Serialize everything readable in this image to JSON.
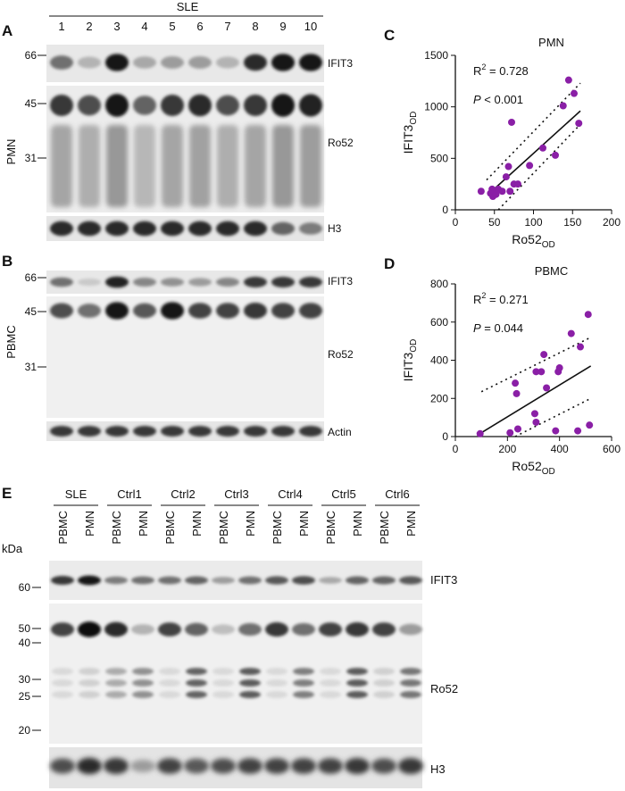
{
  "panels": {
    "A": "A",
    "B": "B",
    "C": "C",
    "D": "D",
    "E": "E"
  },
  "blot_top": {
    "group_label": "SLE",
    "lanes": [
      "1",
      "2",
      "3",
      "4",
      "5",
      "6",
      "7",
      "8",
      "9",
      "10"
    ],
    "A": {
      "side_label": "PMN",
      "markers": [
        "66",
        "45",
        "31"
      ],
      "rows": [
        "IFIT3",
        "Ro52",
        "H3"
      ],
      "ifit3_intensity": [
        0.55,
        0.25,
        0.95,
        0.3,
        0.35,
        0.35,
        0.25,
        0.85,
        0.95,
        0.95
      ],
      "ro52_intensity": [
        0.8,
        0.7,
        0.95,
        0.6,
        0.8,
        0.85,
        0.7,
        0.8,
        0.95,
        0.9
      ],
      "h3_intensity": [
        0.85,
        0.85,
        0.85,
        0.85,
        0.85,
        0.85,
        0.85,
        0.85,
        0.6,
        0.5
      ]
    },
    "B": {
      "side_label": "PBMC",
      "markers": [
        "66",
        "45",
        "31"
      ],
      "rows": [
        "IFIT3",
        "Ro52",
        "Actin"
      ],
      "ifit3_intensity": [
        0.55,
        0.15,
        0.9,
        0.45,
        0.4,
        0.35,
        0.45,
        0.8,
        0.8,
        0.8
      ],
      "ro52_intensity": [
        0.7,
        0.55,
        0.95,
        0.65,
        0.95,
        0.75,
        0.75,
        0.8,
        0.75,
        0.75
      ],
      "actin_intensity": [
        0.8,
        0.8,
        0.8,
        0.8,
        0.8,
        0.8,
        0.8,
        0.8,
        0.8,
        0.8
      ]
    }
  },
  "chart_data": [
    {
      "type": "scatter",
      "panel": "C",
      "title": "PMN",
      "xlabel_main": "Ro52",
      "xlabel_sub": "OD",
      "ylabel_main": "IFIT3",
      "ylabel_sub": "OD",
      "xlim": [
        0,
        200
      ],
      "ylim": [
        0,
        1500
      ],
      "xticks": [
        "0",
        "50",
        "100",
        "150",
        "200"
      ],
      "yticks": [
        "0",
        "500",
        "1000",
        "1500"
      ],
      "r2_prefix": "R",
      "r2_sup": "2",
      "r2_value": " = 0.728",
      "p_symbol": "P",
      "p_value": " < 0.001",
      "points": [
        [
          33,
          180
        ],
        [
          45,
          160
        ],
        [
          47,
          200
        ],
        [
          48,
          130
        ],
        [
          50,
          170
        ],
        [
          52,
          150
        ],
        [
          55,
          200
        ],
        [
          60,
          180
        ],
        [
          65,
          320
        ],
        [
          68,
          420
        ],
        [
          72,
          850
        ],
        [
          70,
          180
        ],
        [
          75,
          250
        ],
        [
          80,
          250
        ],
        [
          95,
          430
        ],
        [
          112,
          600
        ],
        [
          128,
          530
        ],
        [
          138,
          1010
        ],
        [
          145,
          1260
        ],
        [
          152,
          1130
        ],
        [
          158,
          840
        ]
      ],
      "fit": {
        "x": [
          45,
          160
        ],
        "y": [
          170,
          960
        ]
      },
      "ci_upper": {
        "x": [
          40,
          160
        ],
        "y": [
          290,
          1230
        ]
      },
      "ci_lower": {
        "x": [
          55,
          160
        ],
        "y": [
          0,
          830
        ]
      }
    },
    {
      "type": "scatter",
      "panel": "D",
      "title": "PBMC",
      "xlabel_main": "Ro52",
      "xlabel_sub": "OD",
      "ylabel_main": "IFIT3",
      "ylabel_sub": "OD",
      "xlim": [
        0,
        600
      ],
      "ylim": [
        0,
        800
      ],
      "xticks": [
        "0",
        "200",
        "400",
        "600"
      ],
      "yticks": [
        "0",
        "200",
        "400",
        "600",
        "800"
      ],
      "r2_prefix": "R",
      "r2_sup": "2",
      "r2_value": " = 0.271",
      "p_symbol": "P",
      "p_value": " = 0.044",
      "points": [
        [
          95,
          15
        ],
        [
          210,
          20
        ],
        [
          230,
          280
        ],
        [
          235,
          225
        ],
        [
          240,
          40
        ],
        [
          310,
          340
        ],
        [
          305,
          120
        ],
        [
          310,
          75
        ],
        [
          330,
          340
        ],
        [
          340,
          430
        ],
        [
          350,
          255
        ],
        [
          385,
          30
        ],
        [
          395,
          340
        ],
        [
          400,
          360
        ],
        [
          445,
          540
        ],
        [
          470,
          30
        ],
        [
          480,
          470
        ],
        [
          510,
          640
        ],
        [
          515,
          60
        ]
      ],
      "fit": {
        "x": [
          100,
          520
        ],
        "y": [
          20,
          370
        ]
      },
      "ci_upper": {
        "x": [
          100,
          520
        ],
        "y": [
          235,
          520
        ]
      },
      "ci_lower": {
        "x": [
          230,
          520
        ],
        "y": [
          0,
          200
        ]
      }
    }
  ],
  "blot_bottom": {
    "kda_label": "kDa",
    "groups": [
      "SLE",
      "Ctrl1",
      "Ctrl2",
      "Ctrl3",
      "Ctrl4",
      "Ctrl5",
      "Ctrl6"
    ],
    "lane_labels": [
      "PBMC",
      "PMN"
    ],
    "markers": [
      "60",
      "50",
      "40",
      "30",
      "25",
      "20"
    ],
    "rows": [
      "IFIT3",
      "Ro52",
      "H3"
    ],
    "ifit3_intensity": [
      0.8,
      0.95,
      0.5,
      0.55,
      0.55,
      0.6,
      0.35,
      0.55,
      0.65,
      0.7,
      0.3,
      0.6,
      0.6,
      0.65
    ],
    "ro52_main_intensity": [
      0.75,
      0.98,
      0.85,
      0.25,
      0.75,
      0.6,
      0.2,
      0.55,
      0.8,
      0.55,
      0.75,
      0.8,
      0.75,
      0.35
    ],
    "ro52_smear_intensity": [
      0.1,
      0.15,
      0.35,
      0.5,
      0.1,
      0.75,
      0.1,
      0.8,
      0.1,
      0.6,
      0.1,
      0.8,
      0.15,
      0.65
    ],
    "h3_intensity": [
      0.7,
      0.85,
      0.8,
      0.35,
      0.75,
      0.65,
      0.7,
      0.75,
      0.75,
      0.75,
      0.75,
      0.8,
      0.7,
      0.8
    ]
  }
}
